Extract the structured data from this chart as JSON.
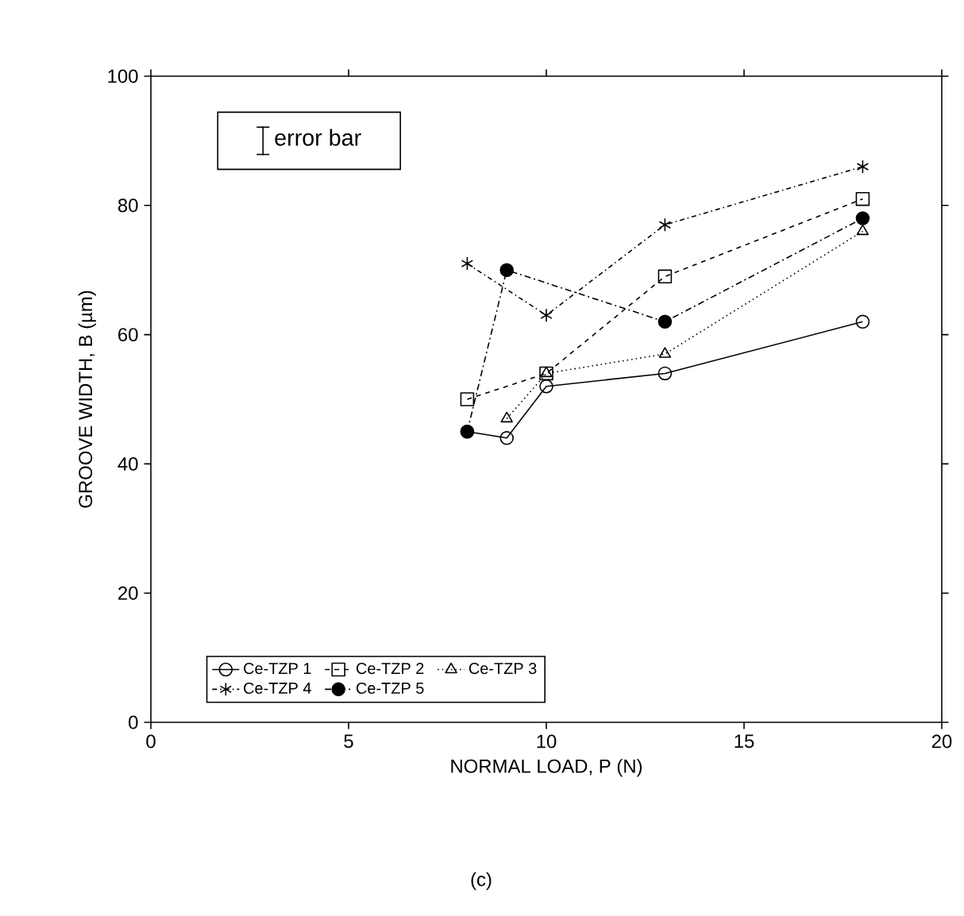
{
  "chart_data": {
    "type": "line",
    "xlabel": "NORMAL LOAD, P (N)",
    "ylabel": "GROOVE WIDTH, B (µm)",
    "xlim": [
      0,
      20
    ],
    "ylim": [
      0,
      100
    ],
    "xticks": [
      0,
      5,
      10,
      15,
      20
    ],
    "yticks": [
      0,
      20,
      40,
      60,
      80,
      100
    ],
    "legend": "bottom",
    "grid": false,
    "annotations": [
      "error bar",
      "(c)"
    ],
    "series": [
      {
        "name": "Ce-TZP 1",
        "color": "#000000",
        "marker": "circle",
        "line_style": "solid",
        "x": [
          8,
          9,
          10,
          13,
          18
        ],
        "values": [
          45,
          44,
          52,
          54,
          62
        ]
      },
      {
        "name": "Ce-TZP 2",
        "color": "#000000",
        "marker": "square",
        "line_style": "dashed",
        "x": [
          8,
          10,
          13,
          18
        ],
        "values": [
          50,
          54,
          69,
          81
        ]
      },
      {
        "name": "Ce-TZP 3",
        "color": "#000000",
        "marker": "triangle",
        "line_style": "dotted",
        "x": [
          9,
          10,
          13,
          18
        ],
        "values": [
          47,
          54,
          57,
          76
        ]
      },
      {
        "name": "Ce-TZP 4",
        "color": "#000000",
        "marker": "cross",
        "line_style": "dashdotted",
        "x": [
          8,
          10,
          13,
          18
        ],
        "values": [
          71,
          63,
          77,
          86
        ]
      },
      {
        "name": "Ce-TZP 5",
        "color": "#000000",
        "marker": "filled circle",
        "line_style": "loosely dashdotted",
        "x": [
          8,
          9,
          13,
          18
        ],
        "values": [
          45,
          70,
          62,
          78
        ]
      }
    ]
  }
}
